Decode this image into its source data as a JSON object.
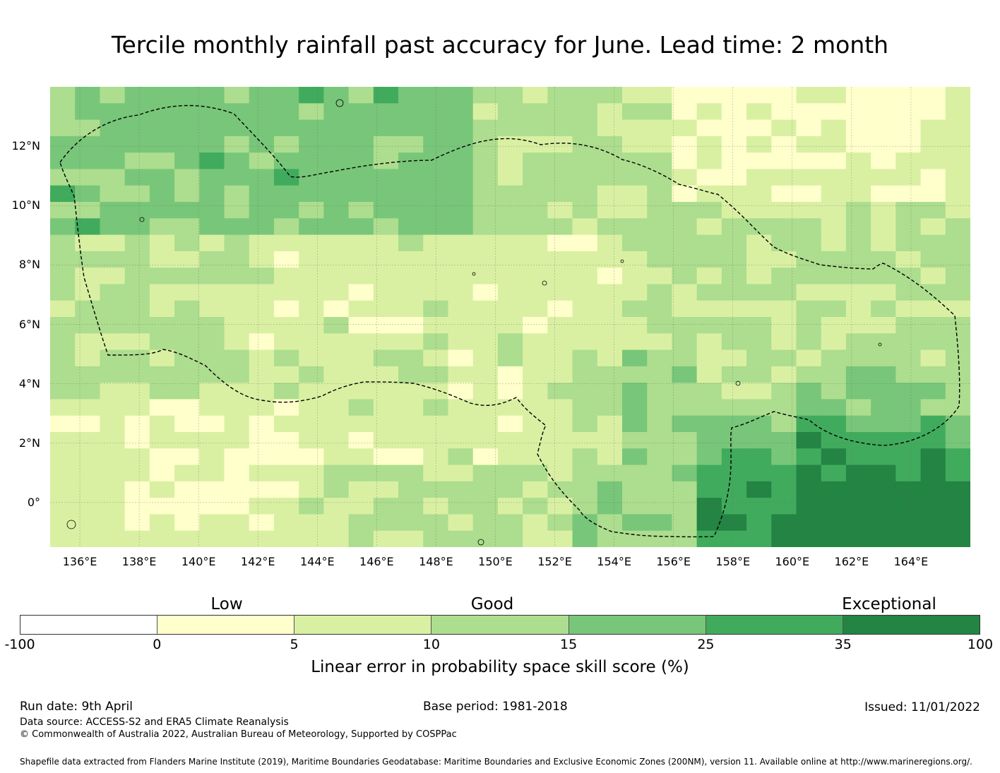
{
  "title": "Tercile monthly rainfall past accuracy for June. Lead time: 2 month",
  "map": {
    "lat_labels": [
      "12°N",
      "10°N",
      "8°N",
      "6°N",
      "4°N",
      "2°N",
      "0°"
    ],
    "lon_labels": [
      "136°E",
      "138°E",
      "140°E",
      "142°E",
      "144°E",
      "146°E",
      "148°E",
      "150°E",
      "152°E",
      "154°E",
      "156°E",
      "158°E",
      "160°E",
      "162°E",
      "164°E"
    ],
    "lon_min": 135,
    "lon_max": 166,
    "lat_min": -1.5,
    "lat_max": 14,
    "eez_boundary": "dashed black line"
  },
  "colorbar": {
    "category_labels": [
      "Low",
      "Good",
      "Exceptional"
    ],
    "boundaries": [
      "-100",
      "0",
      "5",
      "10",
      "15",
      "25",
      "35",
      "100"
    ],
    "colors": [
      "#ffffff",
      "#ffffcc",
      "#d9f0a3",
      "#addd8e",
      "#78c679",
      "#41ab5d",
      "#238443"
    ],
    "label": "Linear error in probability space skill score (%)"
  },
  "footer": {
    "run_date": "Run date: 9th April",
    "base_period": "Base period: 1981-2018",
    "issued": "Issued: 11/01/2022",
    "data_source": "Data source: ACCESS-S2 and ERA5 Climate Reanalysis",
    "copyright": "© Commonwealth of Australia 2022, Australian Bureau of Meteorology, Supported by COSPPac",
    "shapefile": "Shapefile data extracted from Flanders Marine Institute (2019), Maritime Boundaries Geodatabase: Maritime Boundaries and Exclusive Economic Zones (200NM), version 11. Available online at http://www.marineregions.org/."
  }
}
